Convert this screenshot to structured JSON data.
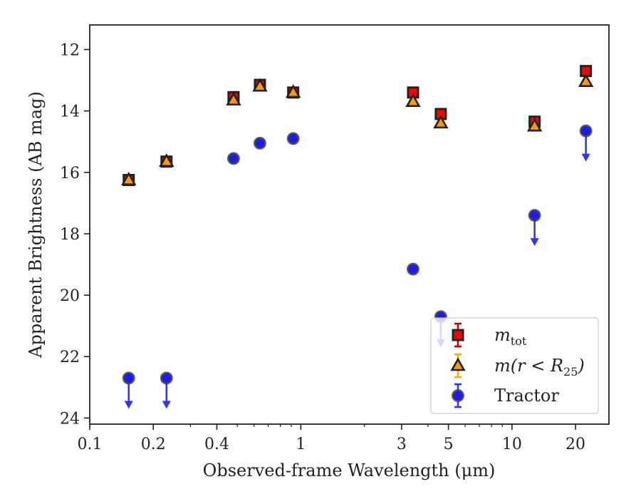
{
  "chart_data": {
    "type": "scatter",
    "xlabel": "Observed-frame Wavelength (μm)",
    "ylabel": "Apparent Brightness (AB mag)",
    "x_scale": "log",
    "xlim": [
      0.1,
      28.8
    ],
    "ylim": [
      24.2,
      11.2
    ],
    "y_inverted": true,
    "x_ticks": [
      {
        "value": 0.1,
        "label": "0.1"
      },
      {
        "value": 0.2,
        "label": "0.2"
      },
      {
        "value": 0.4,
        "label": "0.4"
      },
      {
        "value": 1,
        "label": "1"
      },
      {
        "value": 3,
        "label": "3"
      },
      {
        "value": 5,
        "label": "5"
      },
      {
        "value": 10,
        "label": "10"
      },
      {
        "value": 20,
        "label": "20"
      }
    ],
    "y_ticks": [
      {
        "value": 12,
        "label": "12"
      },
      {
        "value": 14,
        "label": "14"
      },
      {
        "value": 16,
        "label": "16"
      },
      {
        "value": 18,
        "label": "18"
      },
      {
        "value": 20,
        "label": "20"
      },
      {
        "value": 22,
        "label": "22"
      },
      {
        "value": 24,
        "label": "24"
      }
    ],
    "legend": {
      "position": "lower-right"
    },
    "series": [
      {
        "id": "tot",
        "name": "m",
        "name_sub": "tot",
        "marker": "square",
        "color": "#ff0000",
        "edge": "#222222",
        "error_color": "#cc0000",
        "points": [
          {
            "x": 0.153,
            "y": 16.25
          },
          {
            "x": 0.231,
            "y": 15.65
          },
          {
            "x": 0.48,
            "y": 13.55
          },
          {
            "x": 0.64,
            "y": 13.15
          },
          {
            "x": 0.92,
            "y": 13.4
          },
          {
            "x": 3.4,
            "y": 13.4
          },
          {
            "x": 4.6,
            "y": 14.1
          },
          {
            "x": 12.8,
            "y": 14.35
          },
          {
            "x": 22.4,
            "y": 12.7
          }
        ]
      },
      {
        "id": "r25",
        "name": "m(r < R",
        "name_sub": "25",
        "name_tail": ")",
        "marker": "triangle",
        "color": "#ff9900",
        "edge": "#222222",
        "error_color": "#ffaa00",
        "points": [
          {
            "x": 0.153,
            "y": 16.25
          },
          {
            "x": 0.231,
            "y": 15.65
          },
          {
            "x": 0.48,
            "y": 13.65
          },
          {
            "x": 0.64,
            "y": 13.2
          },
          {
            "x": 0.92,
            "y": 13.4
          },
          {
            "x": 3.4,
            "y": 13.7
          },
          {
            "x": 4.6,
            "y": 14.4
          },
          {
            "x": 12.8,
            "y": 14.5
          },
          {
            "x": 22.4,
            "y": 13.05
          }
        ]
      },
      {
        "id": "tractor",
        "name": "Tractor",
        "marker": "circle",
        "color": "#1a1aff",
        "edge": "#444444",
        "error_color": "#3333ff",
        "points": [
          {
            "x": 0.153,
            "y": 22.7,
            "upper_limit": true
          },
          {
            "x": 0.231,
            "y": 22.7,
            "upper_limit": true
          },
          {
            "x": 0.48,
            "y": 15.55
          },
          {
            "x": 0.64,
            "y": 15.05
          },
          {
            "x": 0.92,
            "y": 14.9
          },
          {
            "x": 3.4,
            "y": 19.15
          },
          {
            "x": 4.6,
            "y": 20.7,
            "upper_limit": true
          },
          {
            "x": 12.8,
            "y": 17.4,
            "upper_limit": true
          },
          {
            "x": 22.4,
            "y": 14.65,
            "upper_limit": true
          }
        ]
      }
    ]
  }
}
